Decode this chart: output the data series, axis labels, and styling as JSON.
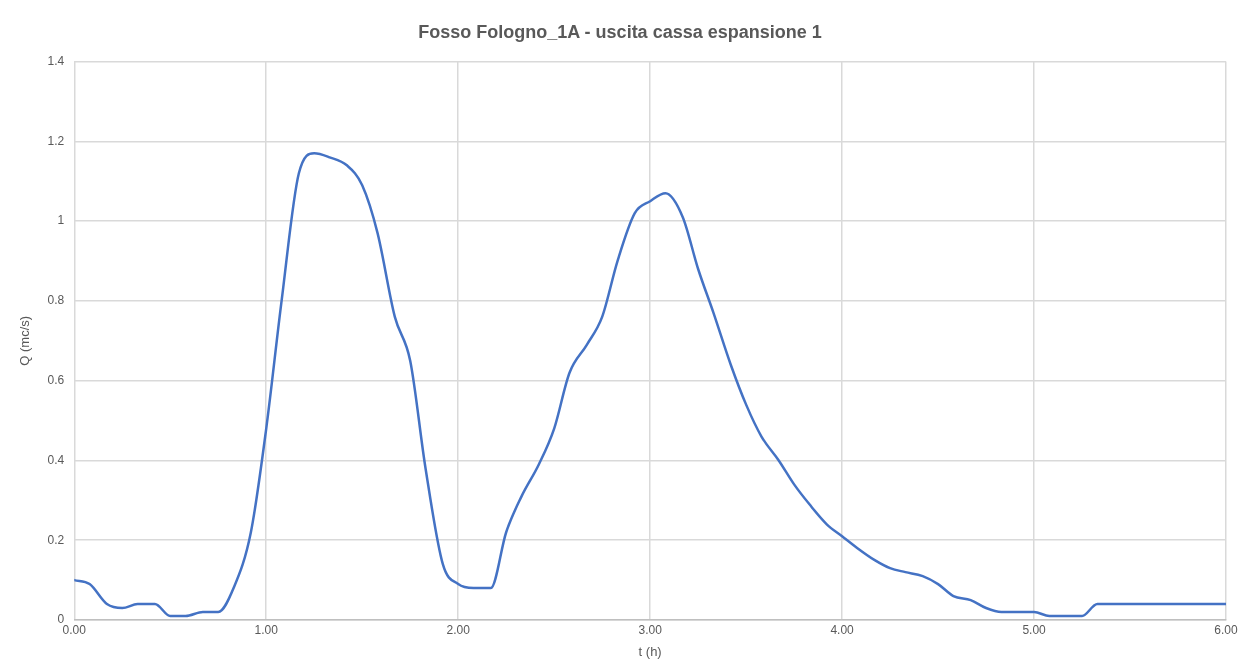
{
  "chart_data": {
    "type": "line",
    "title": "Fosso Fologno_1A - uscita cassa espansione 1",
    "xlabel": "t (h)",
    "ylabel": "Q (mc/s)",
    "x": [
      0,
      0.08,
      0.17,
      0.25,
      0.33,
      0.42,
      0.5,
      0.58,
      0.67,
      0.75,
      0.83,
      0.92,
      1.0,
      1.08,
      1.17,
      1.25,
      1.33,
      1.42,
      1.5,
      1.58,
      1.67,
      1.75,
      1.83,
      1.92,
      2.0,
      2.08,
      2.17,
      2.25,
      2.33,
      2.42,
      2.5,
      2.58,
      2.67,
      2.75,
      2.83,
      2.92,
      3.0,
      3.08,
      3.17,
      3.25,
      3.33,
      3.42,
      3.5,
      3.58,
      3.67,
      3.75,
      3.83,
      3.92,
      4.0,
      4.08,
      4.17,
      4.25,
      4.33,
      4.42,
      4.5,
      4.58,
      4.67,
      4.75,
      4.83,
      4.92,
      5.0,
      5.08,
      5.17,
      5.25,
      5.33,
      5.42,
      5.5,
      5.75,
      6.0
    ],
    "series": [
      {
        "color": "#4472c4",
        "values": [
          0.1,
          0.09,
          0.04,
          0.03,
          0.04,
          0.04,
          0.01,
          0.01,
          0.02,
          0.02,
          0.08,
          0.22,
          0.48,
          0.8,
          1.12,
          1.17,
          1.16,
          1.14,
          1.09,
          0.97,
          0.76,
          0.65,
          0.38,
          0.14,
          0.09,
          0.08,
          0.08,
          0.22,
          0.31,
          0.39,
          0.48,
          0.62,
          0.69,
          0.76,
          0.9,
          1.02,
          1.05,
          1.07,
          1.01,
          0.88,
          0.77,
          0.64,
          0.54,
          0.46,
          0.4,
          0.34,
          0.29,
          0.24,
          0.21,
          0.18,
          0.15,
          0.13,
          0.12,
          0.11,
          0.09,
          0.06,
          0.05,
          0.03,
          0.02,
          0.02,
          0.02,
          0.01,
          0.01,
          0.01,
          0.04,
          0.04,
          0.04,
          0.04,
          0.04
        ]
      }
    ],
    "xlim": [
      0,
      6
    ],
    "xticks": [
      {
        "value": 0,
        "label": "0.00"
      },
      {
        "value": 1,
        "label": "1.00"
      },
      {
        "value": 2,
        "label": "2.00"
      },
      {
        "value": 3,
        "label": "3.00"
      },
      {
        "value": 4,
        "label": "4.00"
      },
      {
        "value": 5,
        "label": "5.00"
      },
      {
        "value": 6,
        "label": "6.00"
      }
    ],
    "ylim": [
      0,
      1.4
    ],
    "yticks": [
      0,
      0.2,
      0.4,
      0.6,
      0.8,
      1,
      1.2,
      1.4
    ],
    "grid": true,
    "legend": false,
    "marker": "none",
    "line_style": "solid"
  }
}
